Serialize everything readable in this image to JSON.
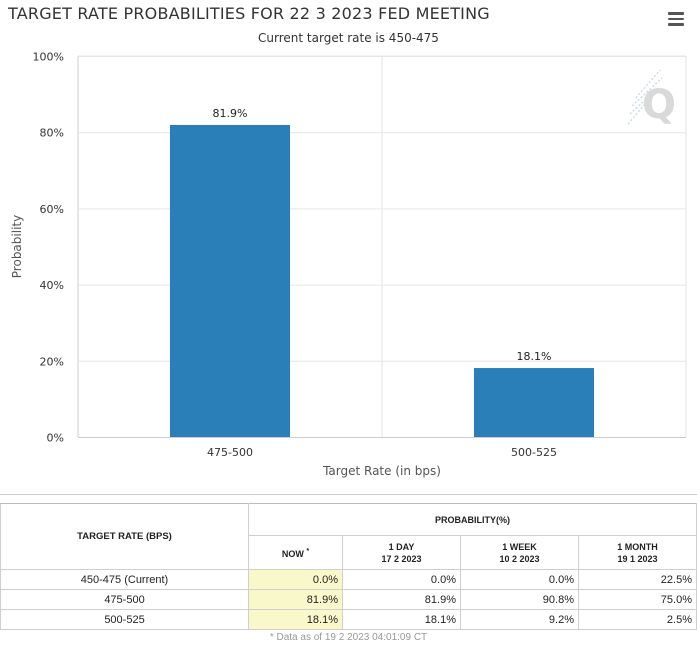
{
  "chart_data": {
    "type": "bar",
    "title": "TARGET RATE PROBABILITIES FOR 22 3 2023 FED MEETING",
    "subtitle": "Current target rate is 450-475",
    "xlabel": "Target Rate (in bps)",
    "ylabel": "Probability",
    "categories": [
      "475-500",
      "500-525"
    ],
    "values": [
      81.9,
      18.1
    ],
    "data_labels": [
      "81.9%",
      "18.1%"
    ],
    "ylim": [
      0,
      100
    ],
    "yticks": [
      0,
      20,
      40,
      60,
      80,
      100
    ],
    "ytick_labels": [
      "0%",
      "20%",
      "40%",
      "60%",
      "80%",
      "100%"
    ],
    "grid": true,
    "bar_color": "#2a7fb8"
  },
  "colors": {
    "bar": "#2a7fb8",
    "grid": "#e6e6e6",
    "axis": "#cccccc",
    "now_highlight": "#f9f8cb",
    "watermark": "#c8dbe6"
  },
  "watermark": {
    "letter": "Q",
    "icon": "quikstrike-logo-icon"
  },
  "menu": {
    "icon": "hamburger-menu-icon"
  },
  "table": {
    "header_main": "TARGET RATE (BPS)",
    "header_probability": "PROBABILITY(%)",
    "columns": [
      {
        "label": "NOW",
        "date": "",
        "marker": "*"
      },
      {
        "label": "1 DAY",
        "date": "17 2 2023"
      },
      {
        "label": "1 WEEK",
        "date": "10 2 2023"
      },
      {
        "label": "1 MONTH",
        "date": "19 1 2023"
      }
    ],
    "rows": [
      {
        "rate": "450-475 (Current)",
        "now": "0.0%",
        "day": "0.0%",
        "week": "0.0%",
        "month": "22.5%"
      },
      {
        "rate": "475-500",
        "now": "81.9%",
        "day": "81.9%",
        "week": "90.8%",
        "month": "75.0%"
      },
      {
        "rate": "500-525",
        "now": "18.1%",
        "day": "18.1%",
        "week": "9.2%",
        "month": "2.5%"
      }
    ]
  },
  "footnote": "* Data as of 19 2 2023 04:01:09 CT"
}
